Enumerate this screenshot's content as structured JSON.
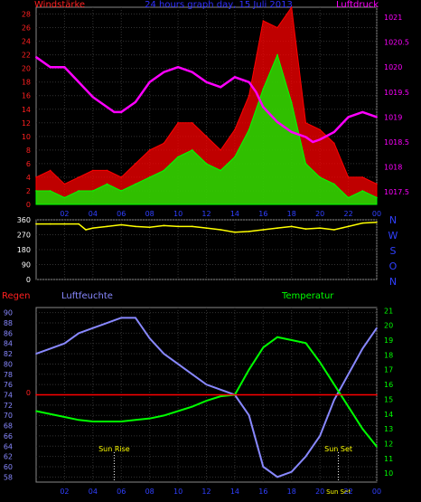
{
  "chart_data": [
    {
      "type": "line",
      "title": "24 hours graph day, 15 Juli 2013",
      "left_axis_label": "Windstärke",
      "right_axis_label": "Luftdruck",
      "x_tick_labels": [
        "02",
        "04",
        "06",
        "08",
        "10",
        "12",
        "14",
        "16",
        "18",
        "20",
        "22",
        "00"
      ],
      "left_ticks": [
        0,
        2,
        4,
        6,
        8,
        10,
        12,
        14,
        16,
        18,
        20,
        22,
        24,
        26,
        28
      ],
      "right_ticks": [
        1017.5,
        1018,
        1018.5,
        1019,
        1019.5,
        1020,
        1020.5,
        1021
      ],
      "ylim_left": [
        0,
        29
      ],
      "ylim_right": [
        1017.25,
        1021.2
      ],
      "grid": true,
      "series": [
        {
          "name": "Luftdruck",
          "color": "#ff00ff",
          "x": [
            0,
            1,
            2,
            3,
            4,
            5,
            5.5,
            6,
            7,
            8,
            9,
            10,
            11,
            12,
            13,
            14,
            15,
            15.5,
            16,
            17,
            18,
            19,
            19.5,
            20,
            21,
            22,
            23,
            24
          ],
          "y": [
            1020.2,
            1020,
            1020,
            1019.7,
            1019.4,
            1019.2,
            1019.1,
            1019.1,
            1019.3,
            1019.7,
            1019.9,
            1020,
            1019.9,
            1019.7,
            1019.6,
            1019.8,
            1019.7,
            1019.5,
            1019.2,
            1018.9,
            1018.7,
            1018.6,
            1018.5,
            1018.55,
            1018.7,
            1019,
            1019.1,
            1019
          ]
        },
        {
          "name": "Windstärke Böen",
          "color": "#ff0000",
          "x": [
            0,
            1,
            2,
            3,
            4,
            5,
            6,
            7,
            8,
            9,
            10,
            11,
            12,
            13,
            14,
            15,
            16,
            17,
            18,
            19,
            20,
            21,
            22,
            23,
            24
          ],
          "y": [
            4,
            5,
            3,
            4,
            5,
            5,
            4,
            6,
            8,
            9,
            12,
            12,
            10,
            8,
            11,
            16,
            27,
            26,
            29,
            12,
            11,
            9,
            4,
            4,
            3
          ]
        },
        {
          "name": "Windstärke Mittel",
          "color": "#00ff00",
          "x": [
            0,
            1,
            2,
            3,
            4,
            5,
            6,
            7,
            8,
            9,
            10,
            11,
            12,
            13,
            14,
            15,
            16,
            17,
            18,
            19,
            20,
            21,
            22,
            23,
            24
          ],
          "y": [
            2,
            2,
            1,
            2,
            2,
            3,
            2,
            3,
            4,
            5,
            7,
            8,
            6,
            5,
            7,
            11,
            17,
            22,
            15,
            6,
            4,
            3,
            1,
            2,
            1
          ]
        }
      ]
    },
    {
      "type": "line",
      "title": "",
      "direction_labels": [
        "N",
        "W",
        "S",
        "O",
        "N"
      ],
      "left_ticks": [
        0,
        90,
        180,
        270,
        360
      ],
      "ylim": [
        0,
        360
      ],
      "grid": true,
      "series": [
        {
          "name": "Windrichtung",
          "color": "#ffff00",
          "x": [
            0,
            1,
            2,
            3,
            3.5,
            4,
            5,
            6,
            7,
            8,
            9,
            10,
            11,
            12,
            13,
            14,
            15,
            16,
            17,
            18,
            19,
            20,
            21,
            22,
            23,
            24
          ],
          "y": [
            335,
            335,
            335,
            335,
            300,
            310,
            320,
            330,
            320,
            315,
            325,
            320,
            320,
            310,
            300,
            285,
            290,
            300,
            310,
            320,
            305,
            310,
            300,
            320,
            340,
            345
          ]
        }
      ]
    },
    {
      "type": "line",
      "title": "",
      "left_label_rain": "Regen",
      "left_label_humidity": "Luftfeuchte",
      "right_label": "Temperatur",
      "x_tick_labels": [
        "02",
        "04",
        "06",
        "08",
        "10",
        "12",
        "14",
        "16",
        "18",
        "20",
        "22",
        "00"
      ],
      "humidity_ticks": [
        58,
        60,
        62,
        64,
        66,
        68,
        70,
        72,
        74,
        76,
        78,
        80,
        82,
        84,
        86,
        88,
        90
      ],
      "rain_tick": "0",
      "temp_ticks": [
        10,
        11,
        12,
        13,
        14,
        15,
        16,
        17,
        18,
        19,
        20,
        21
      ],
      "ylim_humidity": [
        57,
        91
      ],
      "ylim_temp": [
        9.4,
        21.2
      ],
      "sun_rise_label": "Sun Rise",
      "sun_set_label": "Sun Set",
      "sun_rise_hour": 5.5,
      "sun_set_hour": 21.3,
      "sun_set_time_label": "Sun Set",
      "grid": true,
      "series": [
        {
          "name": "Luftfeuchte",
          "color": "#8888ff",
          "axis": "humidity",
          "x": [
            0,
            1,
            2,
            3,
            4,
            5,
            6,
            7,
            8,
            9,
            10,
            11,
            12,
            13,
            14,
            15,
            16,
            17,
            18,
            19,
            20,
            21,
            22,
            23,
            24
          ],
          "y": [
            82,
            83,
            84,
            86,
            87,
            88,
            89,
            89,
            85,
            82,
            80,
            78,
            76,
            75,
            74,
            70,
            60,
            58,
            59,
            62,
            66,
            73,
            78,
            83,
            87
          ]
        },
        {
          "name": "Temperatur",
          "color": "#00ff00",
          "axis": "temp",
          "x": [
            0,
            1,
            2,
            3,
            4,
            5,
            6,
            7,
            8,
            9,
            10,
            11,
            12,
            13,
            14,
            15,
            16,
            17,
            18,
            19,
            20,
            21,
            22,
            23,
            24
          ],
          "y": [
            14.2,
            14.0,
            13.8,
            13.6,
            13.5,
            13.5,
            13.5,
            13.6,
            13.7,
            13.9,
            14.2,
            14.5,
            14.9,
            15.2,
            15.3,
            17.0,
            18.5,
            19.2,
            19.0,
            18.8,
            17.5,
            16.0,
            14.5,
            13.0,
            11.8
          ]
        },
        {
          "name": "Regen",
          "color": "#ff0000",
          "axis": "rain",
          "x": [
            0,
            24
          ],
          "y": [
            0,
            0
          ]
        }
      ]
    }
  ]
}
